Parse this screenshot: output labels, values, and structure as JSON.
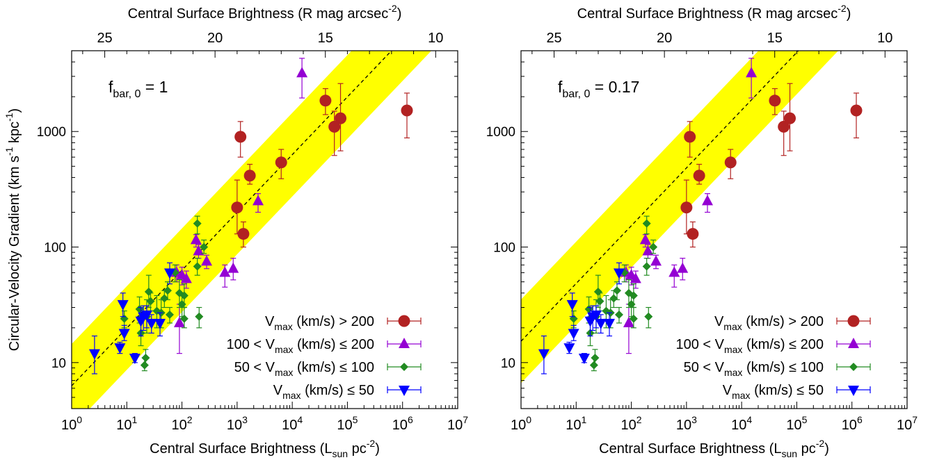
{
  "chart_data": [
    {
      "type": "scatter",
      "panel_label": "f",
      "panel_label_sub": "bar, 0",
      "panel_label_value": " = 1",
      "xlabel": "Central Surface Brightness (L",
      "xlabel_sub": "sun",
      "xlabel_tail": " pc",
      "xlabel_sup": "-2",
      "xlabel_end": ")",
      "x2label": "Central Surface Brightness (R mag arcsec",
      "x2label_sup": "-2",
      "x2label_end": ")",
      "ylabel": "Circular-Velocity Gradient (km s",
      "ylabel_sup1": "-1",
      "ylabel_mid": " kpc",
      "ylabel_sup2": "-1",
      "ylabel_end": ")",
      "xscale": "log",
      "yscale": "log",
      "xlim": [
        1,
        10000000
      ],
      "ylim": [
        4,
        5000
      ],
      "x2lim": [
        26.5,
        9.0
      ],
      "x_ticks": [
        {
          "value": 1,
          "base": "10",
          "exp": "0"
        },
        {
          "value": 10,
          "base": "10",
          "exp": "1"
        },
        {
          "value": 100,
          "base": "10",
          "exp": "2"
        },
        {
          "value": 1000,
          "base": "10",
          "exp": "3"
        },
        {
          "value": 10000,
          "base": "10",
          "exp": "4"
        },
        {
          "value": 100000,
          "base": "10",
          "exp": "5"
        },
        {
          "value": 1000000,
          "base": "10",
          "exp": "6"
        },
        {
          "value": 10000000,
          "base": "10",
          "exp": "7"
        }
      ],
      "x2_ticks": [
        {
          "value": 25,
          "label": "25"
        },
        {
          "value": 20,
          "label": "20"
        },
        {
          "value": 15,
          "label": "15"
        },
        {
          "value": 10,
          "label": "10"
        }
      ],
      "y_ticks": [
        {
          "value": 10,
          "label": "10"
        },
        {
          "value": 100,
          "label": "100"
        },
        {
          "value": 1000,
          "label": "1000"
        }
      ],
      "band": {
        "color": "#ffff00",
        "slope": 0.5,
        "center_at_1": 6.3,
        "factor": 2.3
      },
      "series": [
        {
          "name": "V",
          "name_sub": "max",
          "name_tail": " (km/s) > 200",
          "marker": "circle",
          "color": "#b22222",
          "points": [
            [
              1000,
              220,
              380,
              130
            ],
            [
              1150,
              900,
              1220,
              600
            ],
            [
              1300,
              130,
              165,
              100
            ],
            [
              1700,
              415,
              520,
              350
            ],
            [
              6300,
              540,
              700,
              390
            ],
            [
              40000,
              1850,
              2350,
              1400
            ],
            [
              58000,
              1100,
              1500,
              620
            ],
            [
              75000,
              1300,
              2600,
              680
            ],
            [
              1200000,
              1520,
              2150,
              880
            ]
          ]
        },
        {
          "name": "100 < V",
          "name_sub": "max",
          "name_tail": " (km/s) ≤ 200",
          "marker": "triangle-up",
          "color": "#9400d3",
          "points": [
            [
              80,
              60,
              70,
              50
            ],
            [
              90,
              22,
              32,
              12
            ],
            [
              100,
              57,
              67,
              47
            ],
            [
              120,
              53,
              62,
              44
            ],
            [
              180,
              115,
              128,
              100
            ],
            [
              200,
              92,
              105,
              80
            ],
            [
              280,
              75,
              85,
              65
            ],
            [
              600,
              60,
              70,
              45
            ],
            [
              850,
              65,
              80,
              52
            ],
            [
              2400,
              250,
              290,
              200
            ],
            [
              15000,
              3200,
              4300,
              1950
            ]
          ]
        },
        {
          "name": "50 < V",
          "name_sub": "max",
          "name_tail": " (km/s) ≤ 100",
          "marker": "diamond",
          "color": "#228b22",
          "points": [
            [
              9,
              24,
              28,
              20
            ],
            [
              17,
              29,
              37,
              22
            ],
            [
              18,
              18,
              25,
              14
            ],
            [
              21,
              9.5,
              11,
              8.5
            ],
            [
              22,
              11,
              13,
              9.5
            ],
            [
              23,
              25,
              35,
              18
            ],
            [
              25,
              41,
              57,
              30
            ],
            [
              27,
              34,
              40,
              28
            ],
            [
              35,
              28,
              38,
              20
            ],
            [
              42,
              27,
              35,
              20
            ],
            [
              48,
              36,
              42,
              30
            ],
            [
              55,
              42,
              50,
              35
            ],
            [
              60,
              26,
              30,
              22
            ],
            [
              75,
              60,
              70,
              50
            ],
            [
              90,
              40,
              52,
              30
            ],
            [
              100,
              32,
              40,
              25
            ],
            [
              110,
              38,
              48,
              30
            ],
            [
              110,
              24,
              30,
              20
            ],
            [
              190,
              68,
              80,
              57
            ],
            [
              190,
              160,
              185,
              130
            ],
            [
              205,
              25,
              30,
              20
            ],
            [
              250,
              100,
              115,
              88
            ]
          ]
        },
        {
          "name": "V",
          "name_sub": "max",
          "name_tail": " (km/s) ≤ 50",
          "marker": "triangle-down",
          "color": "#0000ff",
          "points": [
            [
              2.6,
              12,
              17,
              8
            ],
            [
              7.5,
              13.5,
              15,
              12
            ],
            [
              8.5,
              32,
              40,
              25
            ],
            [
              9,
              18,
              21,
              15.5
            ],
            [
              14,
              11,
              12,
              10
            ],
            [
              18,
              23,
              30,
              17
            ],
            [
              20,
              25,
              31,
              19
            ],
            [
              23,
              26,
              31,
              20
            ],
            [
              28,
              22,
              26,
              18
            ],
            [
              40,
              22,
              27,
              17
            ],
            [
              60,
              60,
              73,
              48
            ]
          ]
        }
      ]
    },
    {
      "type": "scatter",
      "panel_label": "f",
      "panel_label_sub": "bar, 0",
      "panel_label_value": " = 0.17",
      "xlabel": "Central Surface Brightness (L",
      "xlabel_sub": "sun",
      "xlabel_tail": " pc",
      "xlabel_sup": "-2",
      "xlabel_end": ")",
      "x2label": "Central Surface Brightness (R mag arcsec",
      "x2label_sup": "-2",
      "x2label_end": ")",
      "xscale": "log",
      "yscale": "log",
      "xlim": [
        1,
        10000000
      ],
      "ylim": [
        4,
        5000
      ],
      "x2lim": [
        26.5,
        9.0
      ],
      "x_ticks": [
        {
          "value": 1,
          "base": "10",
          "exp": "0"
        },
        {
          "value": 10,
          "base": "10",
          "exp": "1"
        },
        {
          "value": 100,
          "base": "10",
          "exp": "2"
        },
        {
          "value": 1000,
          "base": "10",
          "exp": "3"
        },
        {
          "value": 10000,
          "base": "10",
          "exp": "4"
        },
        {
          "value": 100000,
          "base": "10",
          "exp": "5"
        },
        {
          "value": 1000000,
          "base": "10",
          "exp": "6"
        },
        {
          "value": 10000000,
          "base": "10",
          "exp": "7"
        }
      ],
      "x2_ticks": [
        {
          "value": 25,
          "label": "25"
        },
        {
          "value": 20,
          "label": "20"
        },
        {
          "value": 15,
          "label": "15"
        },
        {
          "value": 10,
          "label": "10"
        }
      ],
      "y_ticks": [
        {
          "value": 10,
          "label": "10"
        },
        {
          "value": 100,
          "label": "100"
        },
        {
          "value": 1000,
          "label": "1000"
        }
      ],
      "band": {
        "color": "#ffff00",
        "slope": 0.5,
        "center_at_1": 15.3,
        "factor": 2.3
      },
      "series": [
        {
          "name": "V",
          "name_sub": "max",
          "name_tail": " (km/s) > 200",
          "marker": "circle",
          "color": "#b22222",
          "points": [
            [
              1000,
              220,
              380,
              130
            ],
            [
              1150,
              900,
              1220,
              600
            ],
            [
              1300,
              130,
              165,
              100
            ],
            [
              1700,
              415,
              520,
              350
            ],
            [
              6300,
              540,
              700,
              390
            ],
            [
              40000,
              1850,
              2350,
              1400
            ],
            [
              58000,
              1100,
              1500,
              620
            ],
            [
              75000,
              1300,
              2600,
              680
            ],
            [
              1200000,
              1520,
              2150,
              880
            ]
          ]
        },
        {
          "name": "100 < V",
          "name_sub": "max",
          "name_tail": " (km/s) ≤ 200",
          "marker": "triangle-up",
          "color": "#9400d3",
          "points": [
            [
              80,
              60,
              70,
              50
            ],
            [
              90,
              22,
              32,
              12
            ],
            [
              100,
              57,
              67,
              47
            ],
            [
              120,
              53,
              62,
              44
            ],
            [
              180,
              115,
              128,
              100
            ],
            [
              200,
              92,
              105,
              80
            ],
            [
              280,
              75,
              85,
              65
            ],
            [
              600,
              60,
              70,
              45
            ],
            [
              850,
              65,
              80,
              52
            ],
            [
              2400,
              250,
              290,
              200
            ],
            [
              15000,
              3200,
              4300,
              1950
            ]
          ]
        },
        {
          "name": "50 < V",
          "name_sub": "max",
          "name_tail": " (km/s) ≤ 100",
          "marker": "diamond",
          "color": "#228b22",
          "points": [
            [
              9,
              24,
              28,
              20
            ],
            [
              17,
              29,
              37,
              22
            ],
            [
              18,
              18,
              25,
              14
            ],
            [
              21,
              9.5,
              11,
              8.5
            ],
            [
              22,
              11,
              13,
              9.5
            ],
            [
              23,
              25,
              35,
              18
            ],
            [
              25,
              41,
              57,
              30
            ],
            [
              27,
              34,
              40,
              28
            ],
            [
              35,
              28,
              38,
              20
            ],
            [
              42,
              27,
              35,
              20
            ],
            [
              48,
              36,
              42,
              30
            ],
            [
              55,
              42,
              50,
              35
            ],
            [
              60,
              26,
              30,
              22
            ],
            [
              75,
              60,
              70,
              50
            ],
            [
              90,
              40,
              52,
              30
            ],
            [
              100,
              32,
              40,
              25
            ],
            [
              110,
              38,
              48,
              30
            ],
            [
              110,
              24,
              30,
              20
            ],
            [
              190,
              68,
              80,
              57
            ],
            [
              190,
              160,
              185,
              130
            ],
            [
              205,
              25,
              30,
              20
            ],
            [
              250,
              100,
              115,
              88
            ]
          ]
        },
        {
          "name": "V",
          "name_sub": "max",
          "name_tail": " (km/s) ≤ 50",
          "marker": "triangle-down",
          "color": "#0000ff",
          "points": [
            [
              2.6,
              12,
              17,
              8
            ],
            [
              7.5,
              13.5,
              15,
              12
            ],
            [
              8.5,
              32,
              40,
              25
            ],
            [
              9,
              18,
              21,
              15.5
            ],
            [
              14,
              11,
              12,
              10
            ],
            [
              18,
              23,
              30,
              17
            ],
            [
              20,
              25,
              31,
              19
            ],
            [
              23,
              26,
              31,
              20
            ],
            [
              28,
              22,
              26,
              18
            ],
            [
              40,
              22,
              27,
              17
            ],
            [
              60,
              60,
              73,
              48
            ]
          ]
        }
      ]
    }
  ]
}
